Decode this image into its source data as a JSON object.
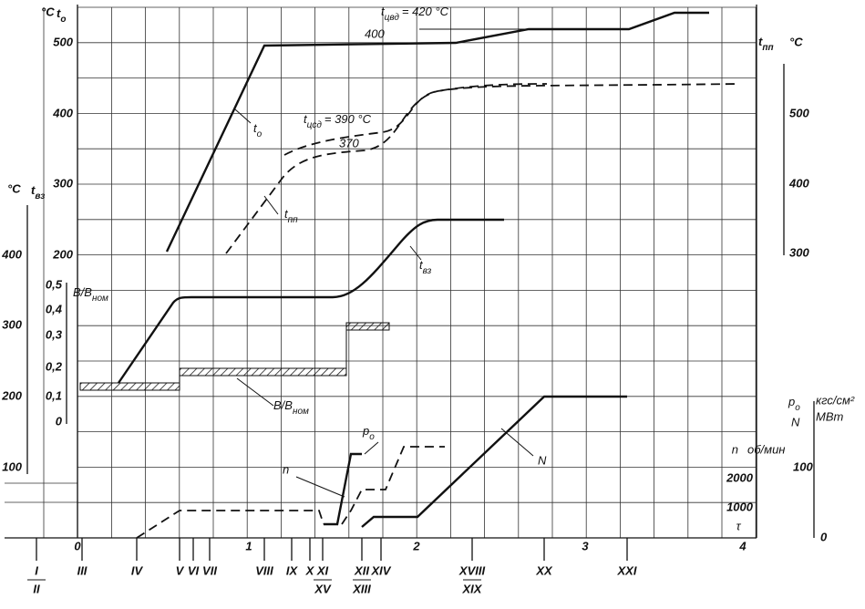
{
  "t0_axis": {
    "unit": "°C",
    "symbol": "t",
    "sub": "o",
    "ticks": [
      "200",
      "300",
      "400",
      "500"
    ]
  },
  "tpp_axis": {
    "unit": "°C",
    "symbol": "t",
    "sub": "пп",
    "ticks": [
      "300",
      "400",
      "500"
    ]
  },
  "tvz_axis": {
    "unit": "°C",
    "symbol": "t",
    "sub": "вз",
    "ticks": [
      "100",
      "200",
      "300",
      "400"
    ]
  },
  "b_axis": {
    "symbol": "B/B",
    "sub": "ном",
    "ticks": [
      "0",
      "0,1",
      "0,2",
      "0,3",
      "0,4",
      "0,5"
    ]
  },
  "n_axis": {
    "symbol": "n",
    "unit": "об/мин",
    "ticks": [
      "1000",
      "2000"
    ]
  },
  "p_axis": {
    "symbol": "p",
    "sub": "o",
    "symbol2": "N",
    "unit": "кгс/см²",
    "unit2": "МВт",
    "ticks": [
      "0",
      "100"
    ]
  },
  "time_axis": {
    "symbol": "τ",
    "ticks": [
      "0",
      "1",
      "2",
      "3",
      "4"
    ]
  },
  "stages": [
    [
      "I",
      "II"
    ],
    [
      "III"
    ],
    [
      "IV"
    ],
    [
      "V"
    ],
    [
      "VI"
    ],
    [
      "VII"
    ],
    [
      "VIII"
    ],
    [
      "IX"
    ],
    [
      "X"
    ],
    [
      "XI",
      "XV"
    ],
    [
      "XII",
      "XIII"
    ],
    [
      "XIV"
    ],
    [
      "XVIII",
      "XIX"
    ],
    [
      "XX"
    ],
    [
      "XXI"
    ]
  ],
  "annotations": {
    "tcvd": {
      "symbol": "t",
      "sub": "цвд",
      "text": "= 420 °C"
    },
    "tcvd_400": "400",
    "tcsd": {
      "symbol": "t",
      "sub": "цсд",
      "text": "= 390 °C"
    },
    "tcsd_370": "370",
    "t0": {
      "symbol": "t",
      "sub": "o"
    },
    "tpp": {
      "symbol": "t",
      "sub": "пп"
    },
    "tvz": {
      "symbol": "t",
      "sub": "вз"
    },
    "b": {
      "symbol": "B/B",
      "sub": "ном"
    },
    "n": "n",
    "p0": {
      "symbol": "p",
      "sub": "o"
    },
    "N": "N"
  }
}
